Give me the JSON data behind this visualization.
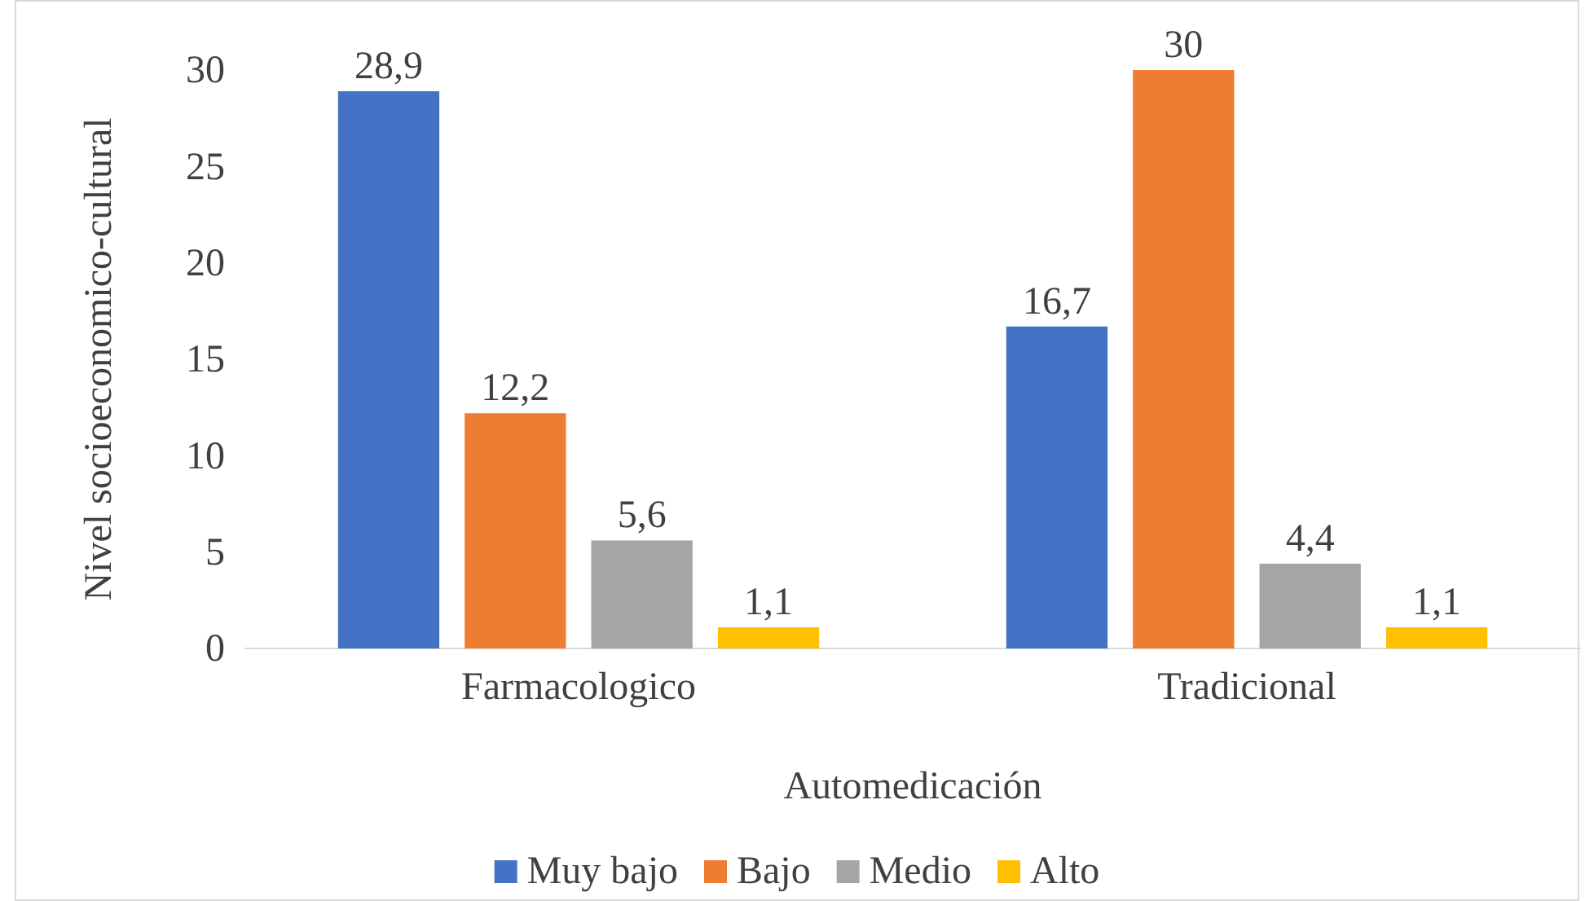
{
  "chart_data": {
    "type": "bar",
    "xlabel": "Automedicación",
    "ylabel": "Nivel socioeconomico-cultural",
    "categories": [
      "Farmacologico",
      "Tradicional"
    ],
    "series": [
      {
        "name": "Muy bajo",
        "color": "#4472c4",
        "values": [
          28.9,
          16.7
        ],
        "value_labels": [
          "28,9",
          "16,7"
        ]
      },
      {
        "name": "Bajo",
        "color": "#ed7d31",
        "values": [
          12.2,
          30
        ],
        "value_labels": [
          "12,2",
          "30"
        ]
      },
      {
        "name": "Medio",
        "color": "#a5a5a5",
        "values": [
          5.6,
          4.4
        ],
        "value_labels": [
          "5,6",
          "4,4"
        ]
      },
      {
        "name": "Alto",
        "color": "#ffc000",
        "values": [
          1.1,
          1.1
        ],
        "value_labels": [
          "1,1",
          "1,1"
        ]
      }
    ],
    "ylim": [
      0,
      30
    ],
    "yticks": [
      0,
      5,
      10,
      15,
      20,
      25,
      30
    ],
    "grid": false,
    "legend": "bottom"
  }
}
